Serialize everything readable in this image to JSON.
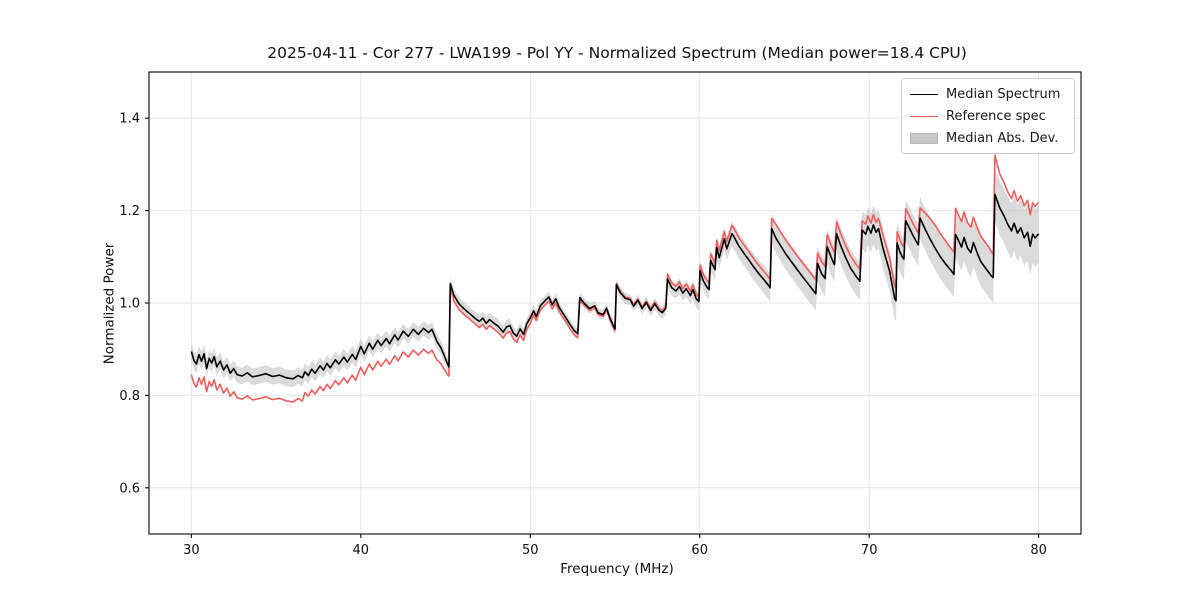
{
  "figure": {
    "title": "2025-04-11 - Cor 277 - LWA199 - Pol YY - Normalized Spectrum (Median power=18.4 CPU)",
    "xlabel": "Frequency (MHz)",
    "ylabel": "Normalized Power"
  },
  "legend": [
    {
      "label": "Median Spectrum",
      "swatch": "line",
      "color": "#000000"
    },
    {
      "label": "Reference spec",
      "swatch": "line",
      "color": "#f25c5c"
    },
    {
      "label": "Median Abs. Dev.",
      "swatch": "patch",
      "color": "#c9c9c9"
    }
  ],
  "colors": {
    "grid": "#e5e5e5",
    "spine": "#1a1a1a",
    "tick_text": "#111111",
    "band_fill": "#b0b0b0",
    "background": "#ffffff"
  },
  "chart_data": {
    "type": "line",
    "title": "2025-04-11 - Cor 277 - LWA199 - Pol YY - Normalized Spectrum (Median power=18.4 CPU)",
    "xlabel": "Frequency (MHz)",
    "ylabel": "Normalized Power",
    "xlim": [
      27.5,
      82.5
    ],
    "ylim": [
      0.5,
      1.5
    ],
    "xticks": [
      30,
      40,
      50,
      60,
      70,
      80
    ],
    "yticks": [
      0.6,
      0.8,
      1.0,
      1.2,
      1.4
    ],
    "grid": true,
    "legend_position": "upper right",
    "x": [
      30.0,
      30.15,
      30.3,
      30.45,
      30.6,
      30.75,
      30.9,
      31.05,
      31.2,
      31.35,
      31.5,
      31.7,
      31.9,
      32.1,
      32.3,
      32.5,
      32.7,
      33.0,
      33.3,
      33.6,
      34.0,
      34.4,
      34.8,
      35.2,
      35.6,
      36.0,
      36.3,
      36.55,
      36.7,
      36.9,
      37.1,
      37.3,
      37.6,
      37.8,
      38.0,
      38.2,
      38.5,
      38.7,
      39.0,
      39.2,
      39.5,
      39.7,
      40.0,
      40.2,
      40.5,
      40.7,
      41.0,
      41.2,
      41.5,
      41.7,
      42.0,
      42.2,
      42.5,
      42.8,
      43.1,
      43.4,
      43.7,
      44.0,
      44.2,
      44.5,
      44.7,
      44.9,
      45.1,
      45.2,
      45.28,
      45.5,
      45.8,
      46.1,
      46.4,
      46.7,
      47.0,
      47.2,
      47.4,
      47.6,
      47.9,
      48.1,
      48.4,
      48.6,
      48.8,
      49.0,
      49.2,
      49.4,
      49.6,
      49.8,
      50.0,
      50.2,
      50.35,
      50.6,
      50.9,
      51.1,
      51.3,
      51.5,
      51.7,
      51.9,
      52.1,
      52.35,
      52.6,
      52.8,
      52.92,
      53.2,
      53.5,
      53.8,
      54.0,
      54.3,
      54.5,
      54.7,
      54.9,
      55.0,
      55.08,
      55.3,
      55.6,
      55.9,
      56.1,
      56.35,
      56.6,
      56.85,
      57.1,
      57.35,
      57.6,
      57.8,
      58.0,
      58.1,
      58.35,
      58.6,
      58.8,
      59.0,
      59.2,
      59.45,
      59.6,
      59.8,
      59.95,
      60.02,
      60.2,
      60.4,
      60.55,
      60.65,
      60.9,
      61.0,
      61.15,
      61.45,
      61.6,
      61.9,
      62.0,
      62.3,
      62.6,
      62.9,
      63.2,
      63.5,
      63.8,
      64.0,
      64.15,
      64.25,
      64.5,
      64.8,
      65.1,
      65.4,
      65.7,
      66.0,
      66.3,
      66.6,
      66.85,
      66.95,
      67.2,
      67.4,
      67.52,
      67.8,
      67.95,
      68.08,
      68.3,
      68.6,
      68.9,
      69.2,
      69.45,
      69.58,
      69.8,
      69.92,
      70.1,
      70.25,
      70.4,
      70.55,
      70.8,
      71.0,
      71.2,
      71.35,
      71.5,
      71.58,
      71.65,
      71.8,
      71.95,
      72.05,
      72.16,
      72.4,
      72.6,
      72.8,
      72.9,
      73.0,
      73.3,
      73.6,
      73.9,
      74.2,
      74.5,
      74.8,
      75.0,
      75.1,
      75.3,
      75.45,
      75.6,
      75.8,
      76.0,
      76.15,
      76.4,
      76.6,
      76.8,
      77.0,
      77.2,
      77.32,
      77.42,
      77.7,
      77.95,
      78.2,
      78.4,
      78.55,
      78.75,
      78.95,
      79.15,
      79.35,
      79.5,
      79.65,
      79.8,
      80.0
    ],
    "series": [
      {
        "name": "Median Spectrum",
        "type": "line",
        "color": "#000000",
        "values": [
          0.895,
          0.876,
          0.868,
          0.888,
          0.874,
          0.89,
          0.858,
          0.88,
          0.87,
          0.884,
          0.862,
          0.874,
          0.855,
          0.866,
          0.848,
          0.858,
          0.845,
          0.842,
          0.849,
          0.84,
          0.843,
          0.847,
          0.841,
          0.844,
          0.838,
          0.836,
          0.843,
          0.838,
          0.851,
          0.843,
          0.857,
          0.848,
          0.864,
          0.855,
          0.869,
          0.86,
          0.877,
          0.868,
          0.883,
          0.872,
          0.889,
          0.878,
          0.906,
          0.89,
          0.913,
          0.9,
          0.919,
          0.908,
          0.923,
          0.912,
          0.931,
          0.92,
          0.939,
          0.928,
          0.943,
          0.932,
          0.945,
          0.936,
          0.943,
          0.916,
          0.905,
          0.888,
          0.87,
          0.862,
          1.042,
          1.016,
          0.998,
          0.987,
          0.978,
          0.968,
          0.96,
          0.967,
          0.956,
          0.964,
          0.955,
          0.95,
          0.937,
          0.948,
          0.951,
          0.935,
          0.928,
          0.944,
          0.932,
          0.956,
          0.968,
          0.983,
          0.971,
          0.994,
          1.006,
          1.013,
          0.996,
          1.009,
          0.991,
          0.979,
          0.968,
          0.953,
          0.94,
          0.934,
          1.012,
          0.999,
          0.988,
          0.994,
          0.979,
          0.975,
          0.989,
          0.968,
          0.951,
          0.944,
          1.04,
          1.023,
          1.01,
          1.007,
          0.993,
          1.006,
          0.988,
          1.001,
          0.984,
          0.998,
          0.984,
          0.979,
          0.989,
          1.052,
          1.033,
          1.026,
          1.036,
          1.021,
          1.031,
          1.016,
          1.029,
          1.009,
          1.003,
          1.07,
          1.049,
          1.036,
          1.029,
          1.092,
          1.072,
          1.12,
          1.098,
          1.139,
          1.117,
          1.15,
          1.145,
          1.124,
          1.108,
          1.093,
          1.077,
          1.063,
          1.05,
          1.041,
          1.033,
          1.161,
          1.14,
          1.122,
          1.105,
          1.09,
          1.075,
          1.06,
          1.046,
          1.032,
          1.02,
          1.086,
          1.063,
          1.053,
          1.122,
          1.095,
          1.083,
          1.15,
          1.126,
          1.099,
          1.076,
          1.059,
          1.047,
          1.158,
          1.149,
          1.166,
          1.151,
          1.169,
          1.153,
          1.161,
          1.121,
          1.095,
          1.07,
          1.04,
          1.01,
          1.005,
          1.13,
          1.112,
          1.1,
          1.095,
          1.178,
          1.16,
          1.145,
          1.132,
          1.126,
          1.184,
          1.16,
          1.138,
          1.118,
          1.1,
          1.085,
          1.072,
          1.062,
          1.148,
          1.133,
          1.121,
          1.142,
          1.119,
          1.109,
          1.131,
          1.106,
          1.089,
          1.079,
          1.069,
          1.059,
          1.055,
          1.235,
          1.206,
          1.189,
          1.169,
          1.156,
          1.173,
          1.151,
          1.163,
          1.141,
          1.153,
          1.123,
          1.149,
          1.141,
          1.15
        ]
      },
      {
        "name": "Reference spec",
        "type": "line",
        "color": "#f25c5c",
        "values": [
          0.845,
          0.826,
          0.818,
          0.838,
          0.824,
          0.84,
          0.808,
          0.83,
          0.82,
          0.834,
          0.812,
          0.824,
          0.805,
          0.816,
          0.798,
          0.808,
          0.795,
          0.792,
          0.799,
          0.79,
          0.793,
          0.797,
          0.791,
          0.794,
          0.788,
          0.786,
          0.793,
          0.788,
          0.806,
          0.798,
          0.812,
          0.803,
          0.819,
          0.81,
          0.824,
          0.815,
          0.832,
          0.823,
          0.838,
          0.827,
          0.844,
          0.833,
          0.861,
          0.845,
          0.868,
          0.855,
          0.874,
          0.863,
          0.878,
          0.867,
          0.886,
          0.875,
          0.894,
          0.883,
          0.898,
          0.887,
          0.9,
          0.891,
          0.898,
          0.876,
          0.87,
          0.858,
          0.846,
          0.842,
          1.033,
          1.004,
          0.986,
          0.975,
          0.966,
          0.956,
          0.947,
          0.954,
          0.943,
          0.951,
          0.942,
          0.937,
          0.924,
          0.935,
          0.938,
          0.922,
          0.915,
          0.931,
          0.919,
          0.943,
          0.956,
          0.974,
          0.962,
          0.985,
          0.997,
          1.004,
          0.987,
          1.0,
          0.982,
          0.97,
          0.959,
          0.944,
          0.931,
          0.925,
          1.007,
          0.995,
          0.984,
          0.99,
          0.975,
          0.971,
          0.985,
          0.964,
          0.947,
          0.94,
          1.042,
          1.026,
          1.013,
          1.01,
          0.996,
          1.009,
          0.991,
          1.004,
          0.988,
          1.002,
          0.988,
          0.983,
          0.993,
          1.063,
          1.043,
          1.036,
          1.046,
          1.031,
          1.041,
          1.026,
          1.039,
          1.019,
          1.013,
          1.082,
          1.063,
          1.05,
          1.043,
          1.106,
          1.086,
          1.136,
          1.114,
          1.155,
          1.133,
          1.168,
          1.163,
          1.142,
          1.126,
          1.111,
          1.095,
          1.081,
          1.068,
          1.059,
          1.051,
          1.183,
          1.17,
          1.152,
          1.135,
          1.12,
          1.105,
          1.09,
          1.076,
          1.062,
          1.05,
          1.108,
          1.089,
          1.079,
          1.148,
          1.121,
          1.109,
          1.176,
          1.152,
          1.125,
          1.102,
          1.085,
          1.073,
          1.178,
          1.171,
          1.188,
          1.173,
          1.191,
          1.175,
          1.183,
          1.149,
          1.123,
          1.098,
          1.068,
          1.038,
          1.033,
          1.154,
          1.138,
          1.126,
          1.121,
          1.204,
          1.186,
          1.171,
          1.158,
          1.152,
          1.206,
          1.195,
          1.183,
          1.168,
          1.15,
          1.135,
          1.12,
          1.11,
          1.205,
          1.188,
          1.176,
          1.197,
          1.174,
          1.164,
          1.186,
          1.161,
          1.144,
          1.134,
          1.124,
          1.112,
          1.105,
          1.32,
          1.28,
          1.261,
          1.239,
          1.226,
          1.243,
          1.22,
          1.232,
          1.21,
          1.222,
          1.191,
          1.217,
          1.209,
          1.218
        ]
      },
      {
        "name": "Median Abs. Dev.",
        "type": "band_halfwidth_around_median",
        "color": "#b0b0b0",
        "opacity": 0.45,
        "values": [
          0.02,
          0.02,
          0.02,
          0.02,
          0.02,
          0.02,
          0.019,
          0.019,
          0.019,
          0.019,
          0.019,
          0.019,
          0.019,
          0.018,
          0.018,
          0.018,
          0.018,
          0.018,
          0.018,
          0.018,
          0.018,
          0.018,
          0.018,
          0.018,
          0.018,
          0.018,
          0.018,
          0.018,
          0.018,
          0.018,
          0.018,
          0.018,
          0.018,
          0.018,
          0.018,
          0.018,
          0.018,
          0.018,
          0.018,
          0.018,
          0.018,
          0.018,
          0.018,
          0.018,
          0.017,
          0.017,
          0.017,
          0.017,
          0.017,
          0.017,
          0.017,
          0.017,
          0.016,
          0.016,
          0.016,
          0.016,
          0.016,
          0.016,
          0.016,
          0.016,
          0.015,
          0.015,
          0.015,
          0.014,
          0.013,
          0.014,
          0.014,
          0.014,
          0.014,
          0.014,
          0.015,
          0.015,
          0.015,
          0.015,
          0.015,
          0.015,
          0.015,
          0.015,
          0.015,
          0.014,
          0.014,
          0.014,
          0.014,
          0.013,
          0.013,
          0.012,
          0.012,
          0.012,
          0.012,
          0.012,
          0.012,
          0.012,
          0.011,
          0.011,
          0.011,
          0.011,
          0.011,
          0.011,
          0.011,
          0.011,
          0.011,
          0.011,
          0.011,
          0.011,
          0.011,
          0.012,
          0.012,
          0.012,
          0.012,
          0.012,
          0.012,
          0.012,
          0.012,
          0.012,
          0.012,
          0.013,
          0.013,
          0.013,
          0.013,
          0.014,
          0.014,
          0.016,
          0.017,
          0.017,
          0.017,
          0.018,
          0.018,
          0.019,
          0.019,
          0.02,
          0.02,
          0.021,
          0.022,
          0.022,
          0.022,
          0.023,
          0.023,
          0.024,
          0.024,
          0.025,
          0.025,
          0.026,
          0.027,
          0.027,
          0.028,
          0.028,
          0.029,
          0.029,
          0.03,
          0.03,
          0.031,
          0.032,
          0.033,
          0.033,
          0.034,
          0.034,
          0.035,
          0.035,
          0.036,
          0.036,
          0.037,
          0.037,
          0.038,
          0.038,
          0.038,
          0.039,
          0.039,
          0.039,
          0.04,
          0.04,
          0.04,
          0.04,
          0.04,
          0.041,
          0.041,
          0.041,
          0.042,
          0.042,
          0.042,
          0.042,
          0.043,
          0.043,
          0.043,
          0.044,
          0.044,
          0.044,
          0.044,
          0.044,
          0.044,
          0.045,
          0.045,
          0.045,
          0.045,
          0.045,
          0.046,
          0.046,
          0.046,
          0.047,
          0.047,
          0.048,
          0.048,
          0.049,
          0.049,
          0.05,
          0.05,
          0.051,
          0.051,
          0.051,
          0.052,
          0.052,
          0.052,
          0.053,
          0.053,
          0.053,
          0.054,
          0.054,
          0.058,
          0.059,
          0.059,
          0.06,
          0.06,
          0.06,
          0.061,
          0.061,
          0.061,
          0.062,
          0.062,
          0.062,
          0.063,
          0.063
        ]
      }
    ]
  }
}
